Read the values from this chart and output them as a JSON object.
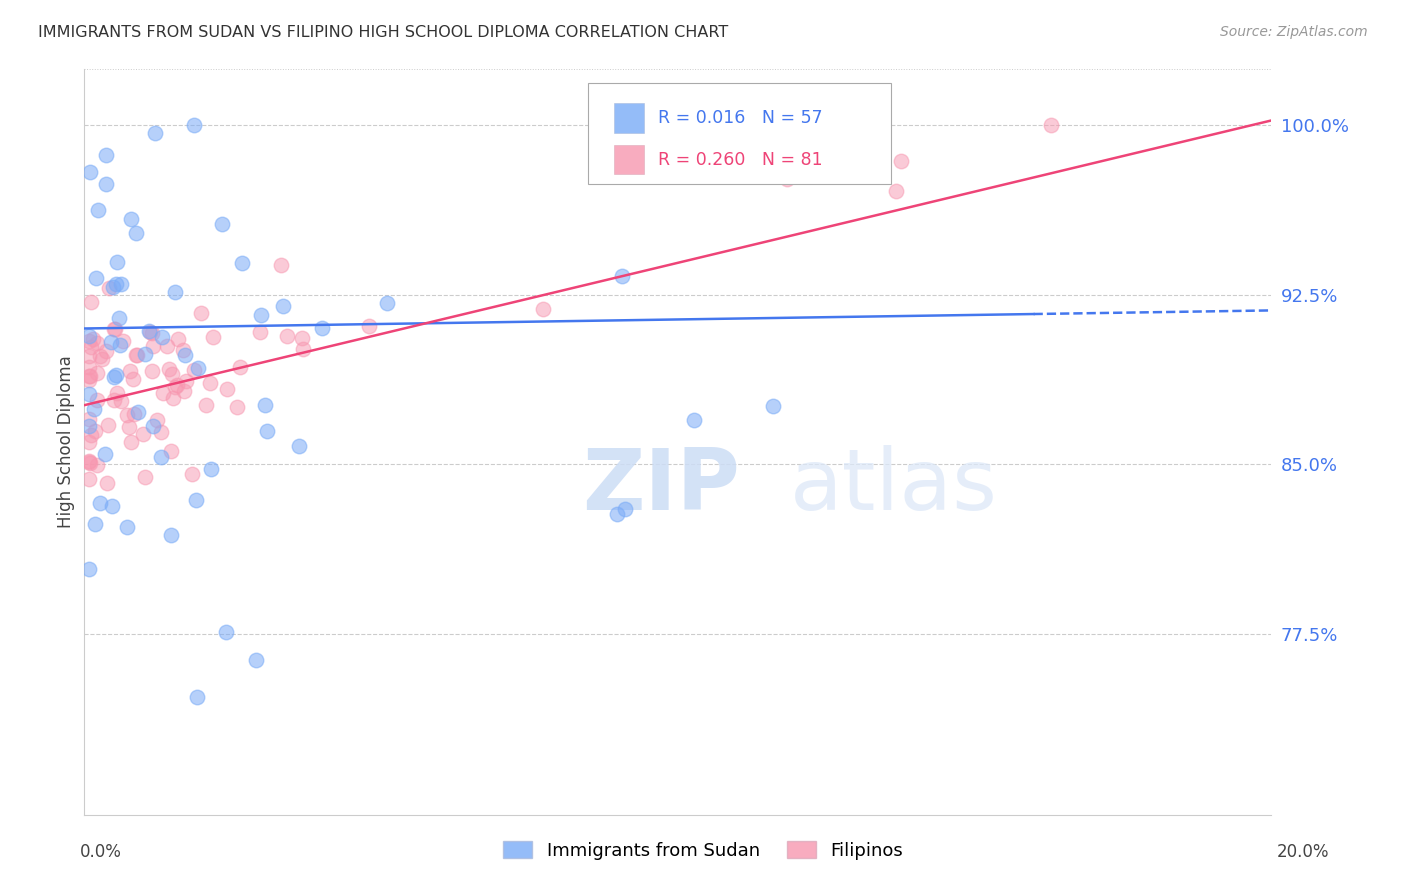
{
  "title": "IMMIGRANTS FROM SUDAN VS FILIPINO HIGH SCHOOL DIPLOMA CORRELATION CHART",
  "source": "Source: ZipAtlas.com",
  "ylabel": "High School Diploma",
  "ylabel_right_labels": [
    "100.0%",
    "92.5%",
    "85.0%",
    "77.5%"
  ],
  "ylabel_right_values": [
    1.0,
    0.925,
    0.85,
    0.775
  ],
  "xmin": 0.0,
  "xmax": 0.2,
  "ymin": 0.695,
  "ymax": 1.025,
  "legend_label1": "Immigrants from Sudan",
  "legend_label2": "Filipinos",
  "blue_color": "#7aabf7",
  "pink_color": "#f797b0",
  "line_blue": "#4477ee",
  "line_pink": "#ee4477",
  "watermark_color": "#ddeeff",
  "grid_color": "#cccccc",
  "title_color": "#333333",
  "source_color": "#999999",
  "right_tick_color": "#4477ee"
}
